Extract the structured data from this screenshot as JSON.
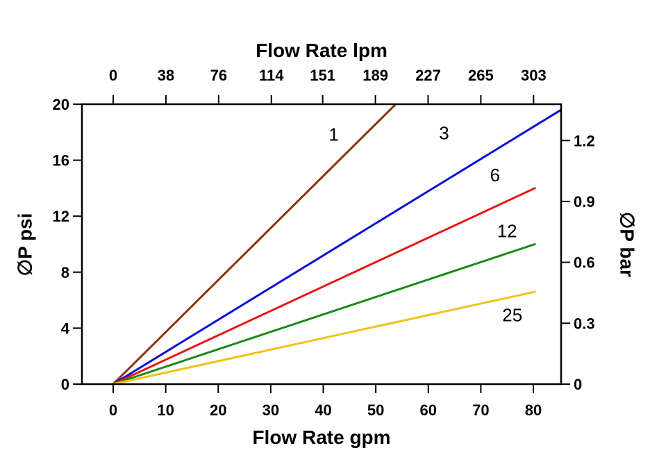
{
  "chart_data": {
    "type": "line",
    "title": "",
    "grid": false,
    "legend": "inline-labels",
    "axes": {
      "bottom": {
        "label": "Flow Rate gpm",
        "unit": "gpm",
        "ticks": [
          0,
          10,
          20,
          30,
          40,
          50,
          60,
          70,
          80
        ],
        "range": [
          -5.95,
          85.3
        ]
      },
      "top": {
        "label": "Flow Rate lpm",
        "unit": "lpm",
        "ticks": [
          0,
          38,
          76,
          114,
          151,
          189,
          227,
          265,
          303
        ],
        "lpm_per_gpm": 3.7854
      },
      "left": {
        "label": "∅P psi",
        "unit": "psi",
        "ticks": [
          0,
          4,
          8,
          12,
          16,
          20
        ],
        "range": [
          0,
          20
        ]
      },
      "right": {
        "label": "∅P bar",
        "unit": "bar",
        "ticks": [
          0,
          0.3,
          0.6,
          0.9,
          1.2
        ],
        "psi_per_bar": 14.504
      }
    },
    "series": [
      {
        "name": "1",
        "color": "#8c3011",
        "points_gpm_psi": [
          [
            0,
            0
          ],
          [
            53.8,
            20.0
          ]
        ],
        "slope_psi_per_gpm": 0.372,
        "label_at_gpm_psi": [
          42,
          17.4
        ]
      },
      {
        "name": "3",
        "color": "#0d0dd6",
        "points_gpm_psi": [
          [
            0,
            0
          ],
          [
            85.3,
            19.6
          ]
        ],
        "slope_psi_per_gpm": 0.23,
        "label_at_gpm_psi": [
          63,
          17.5
        ]
      },
      {
        "name": "6",
        "color": "#ea1414",
        "points_gpm_psi": [
          [
            0,
            0
          ],
          [
            80.3,
            14.0
          ]
        ],
        "slope_psi_per_gpm": 0.175,
        "label_at_gpm_psi": [
          72.7,
          14.5
        ]
      },
      {
        "name": "12",
        "color": "#178a17",
        "points_gpm_psi": [
          [
            0,
            0
          ],
          [
            80.3,
            10.0
          ]
        ],
        "slope_psi_per_gpm": 0.125,
        "label_at_gpm_psi": [
          75,
          10.5
        ]
      },
      {
        "name": "25",
        "color": "#f2c116",
        "points_gpm_psi": [
          [
            0,
            0
          ],
          [
            80.3,
            6.6
          ]
        ],
        "slope_psi_per_gpm": 0.082,
        "label_at_gpm_psi": [
          76,
          4.5
        ]
      }
    ]
  }
}
